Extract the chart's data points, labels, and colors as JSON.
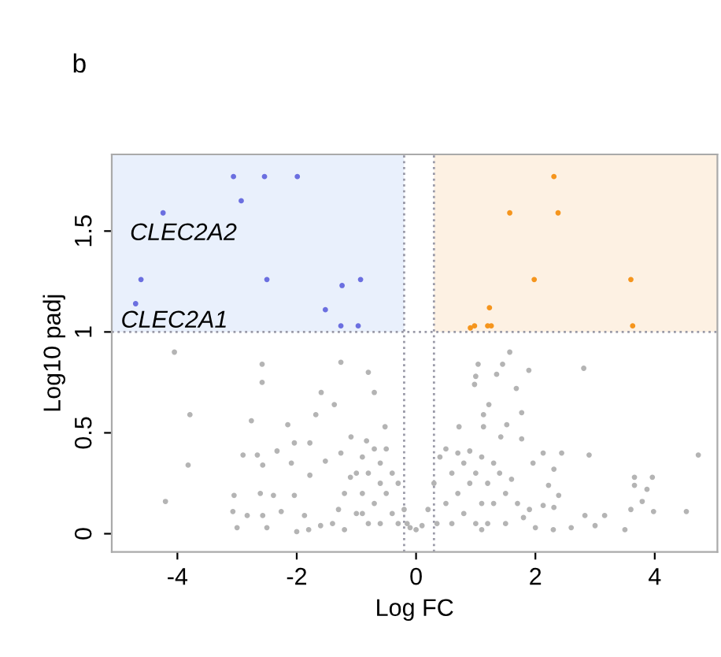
{
  "chart_data": {
    "type": "scatter",
    "xlabel": "Log FC",
    "ylabel": "Log10 padj",
    "xlim": [
      -5.1,
      5.05
    ],
    "ylim": [
      -0.09,
      1.88
    ],
    "xticks": [
      -4,
      -2,
      0,
      2,
      4
    ],
    "yticks": [
      0,
      0.5,
      1,
      1.5
    ],
    "grid": false,
    "marker": "circle",
    "ref_lines": [
      {
        "axis": "y",
        "value": 1,
        "color": "#9a9aa8",
        "line_style": "dotted"
      },
      {
        "axis": "x",
        "value": -0.2,
        "color": "#9a9aa8",
        "line_style": "dotted"
      },
      {
        "axis": "x",
        "value": 0.3,
        "color": "#9a9aa8",
        "line_style": "dotted"
      }
    ],
    "bands": [
      {
        "axis": "x",
        "from": -5.1,
        "to": -0.2,
        "color": "#e9f0fc"
      },
      {
        "axis": "x",
        "from": 0.3,
        "to": 5.05,
        "color": "#fdf1e3"
      }
    ],
    "annotations": [
      "b",
      "CLEC2A2",
      "CLEC2A1"
    ],
    "series": [
      {
        "color": "#b4b4b4",
        "x": [
          -4.05,
          -2.58,
          -2.58,
          -1.26,
          -0.8,
          -1.59,
          -3.79,
          -2.76,
          -2.15,
          -1.68,
          -1.37,
          -0.7,
          -3.82,
          -4.2,
          -3.05,
          -3.07,
          -2.9,
          -2.66,
          -2.57,
          -2.33,
          -2.04,
          -1.78,
          -1.09,
          -0.83,
          -0.52,
          -2.09,
          -1.78,
          -1.52,
          -1.26,
          -2.61,
          -2.39,
          -2.26,
          -2.83,
          -2.57,
          -2.04,
          -1.87,
          -1.4,
          -1.3,
          -1.2,
          -1.1,
          -1.0,
          -1.0,
          -0.9,
          -0.9,
          -0.8,
          -0.8,
          -0.7,
          -0.7,
          -0.6,
          -0.6,
          -0.5,
          -0.5,
          -0.4,
          -0.4,
          -0.3,
          -0.3,
          -0.2,
          -0.15,
          -0.1,
          0,
          -1.6,
          -1.8,
          -2.0,
          -1.2,
          -0.6,
          -0.9,
          -3.0,
          -2.5,
          1.57,
          1.45,
          1.04,
          1.0,
          1.35,
          1.89,
          2.81,
          0.98,
          1.68,
          1.22,
          1.13,
          1.77,
          0.72,
          1.13,
          1.52,
          1.77,
          1.42,
          2.44,
          2.9,
          4.73,
          3.66,
          3.96,
          3.87,
          3.66,
          3.79,
          3.6,
          3.98,
          4.53,
          2.83,
          3.16,
          2.31,
          2.22,
          2.39,
          2.31,
          2.13,
          1.96,
          2.13,
          0.1,
          0.2,
          0.3,
          0.35,
          0.4,
          0.5,
          0.5,
          0.6,
          0.6,
          0.7,
          0.7,
          0.8,
          0.8,
          0.9,
          0.9,
          1.0,
          1.0,
          1.1,
          1.1,
          1.2,
          1.2,
          1.3,
          1.3,
          1.4,
          1.5,
          1.5,
          1.6,
          1.7,
          1.8,
          1.9,
          2.0,
          2.3,
          2.6,
          1.1,
          3.0,
          3.5
        ],
        "values": [
          0.9,
          0.84,
          0.75,
          0.85,
          0.8,
          0.7,
          0.59,
          0.56,
          0.54,
          0.59,
          0.64,
          0.7,
          0.34,
          0.16,
          0.19,
          0.11,
          0.39,
          0.39,
          0.34,
          0.41,
          0.45,
          0.45,
          0.48,
          0.46,
          0.53,
          0.35,
          0.29,
          0.36,
          0.4,
          0.2,
          0.19,
          0.11,
          0.09,
          0.09,
          0.19,
          0.09,
          0.05,
          0.12,
          0.2,
          0.28,
          0.1,
          0.3,
          0.38,
          0.2,
          0.05,
          0.3,
          0.42,
          0.15,
          0.35,
          0.05,
          0.42,
          0.2,
          0.3,
          0.1,
          0.25,
          0.05,
          0.12,
          0.05,
          0.03,
          0.02,
          0.04,
          0.02,
          0.01,
          0.02,
          0.25,
          0.1,
          0.03,
          0.03,
          0.9,
          0.84,
          0.84,
          0.78,
          0.79,
          0.81,
          0.82,
          0.74,
          0.72,
          0.64,
          0.59,
          0.6,
          0.53,
          0.53,
          0.54,
          0.47,
          0.48,
          0.4,
          0.39,
          0.39,
          0.28,
          0.28,
          0.22,
          0.24,
          0.16,
          0.12,
          0.11,
          0.11,
          0.09,
          0.09,
          0.32,
          0.24,
          0.19,
          0.13,
          0.14,
          0.35,
          0.4,
          0.04,
          0.12,
          0.25,
          0.05,
          0.38,
          0.42,
          0.15,
          0.3,
          0.05,
          0.4,
          0.2,
          0.1,
          0.35,
          0.41,
          0.25,
          0.05,
          0.3,
          0.38,
          0.15,
          0.25,
          0.05,
          0.35,
          0.15,
          0.3,
          0.2,
          0.05,
          0.27,
          0.15,
          0.08,
          0.12,
          0.03,
          0.02,
          0.03,
          0.02,
          0.04,
          0.02
        ]
      },
      {
        "color": "#6b6fe0",
        "x": [
          -3.06,
          -2.54,
          -1.99,
          -2.93,
          -4.24,
          -2.5,
          -1.24,
          -0.93,
          -1.52,
          -1.26,
          -0.97,
          -4.61,
          -4.7
        ],
        "values": [
          1.77,
          1.77,
          1.77,
          1.65,
          1.59,
          1.26,
          1.23,
          1.26,
          1.11,
          1.03,
          1.03,
          1.26,
          1.14
        ]
      },
      {
        "color": "#f5951d",
        "x": [
          2.31,
          1.57,
          2.38,
          1.98,
          3.6,
          1.23,
          0.91,
          0.98,
          1.2,
          1.26,
          3.63
        ],
        "values": [
          1.77,
          1.59,
          1.59,
          1.26,
          1.26,
          1.12,
          1.02,
          1.03,
          1.03,
          1.03,
          1.03
        ]
      }
    ]
  }
}
